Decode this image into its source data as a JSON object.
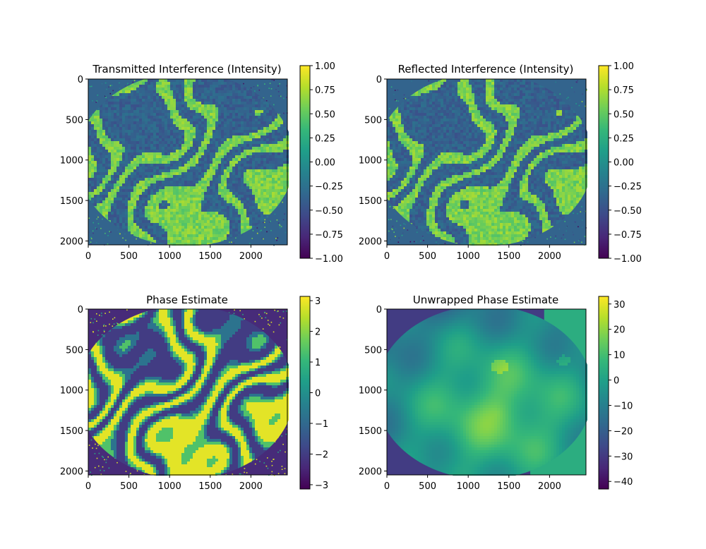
{
  "colors": {
    "background": "#ffffff",
    "viridis": [
      "#440154",
      "#482878",
      "#3e4989",
      "#31688e",
      "#26828e",
      "#1f9e89",
      "#35b779",
      "#6ece58",
      "#b5de2b",
      "#fde725"
    ]
  },
  "chart_data": [
    {
      "type": "heatmap",
      "title": "Transmitted Interference (Intensity)",
      "xlabel": "",
      "ylabel": "",
      "xlim": [
        0,
        2448
      ],
      "ylim": [
        2048,
        0
      ],
      "xticks": [
        0,
        500,
        1000,
        1500,
        2000
      ],
      "yticks": [
        0,
        500,
        1000,
        1500,
        2000
      ],
      "colorbar": {
        "range": [
          -1.0,
          1.0
        ],
        "ticks": [
          "1.00",
          "0.75",
          "0.50",
          "0.25",
          "0.00",
          "−0.25",
          "−0.50",
          "−0.75",
          "−1.00"
        ]
      },
      "pattern": "fringes"
    },
    {
      "type": "heatmap",
      "title": "Reflected Interference (Intensity)",
      "xlabel": "",
      "ylabel": "",
      "xlim": [
        0,
        2448
      ],
      "ylim": [
        2048,
        0
      ],
      "xticks": [
        0,
        500,
        1000,
        1500,
        2000
      ],
      "yticks": [
        0,
        500,
        1000,
        1500,
        2000
      ],
      "colorbar": {
        "range": [
          -1.0,
          1.0
        ],
        "ticks": [
          "1.00",
          "0.75",
          "0.50",
          "0.25",
          "0.00",
          "−0.25",
          "−0.50",
          "−0.75",
          "−1.00"
        ]
      },
      "pattern": "fringes"
    },
    {
      "type": "heatmap",
      "title": "Phase Estimate",
      "xlabel": "",
      "ylabel": "",
      "xlim": [
        0,
        2448
      ],
      "ylim": [
        2048,
        0
      ],
      "xticks": [
        0,
        500,
        1000,
        1500,
        2000
      ],
      "yticks": [
        0,
        500,
        1000,
        1500,
        2000
      ],
      "colorbar": {
        "range": [
          -3.14,
          3.14
        ],
        "ticks": [
          "3",
          "2",
          "1",
          "0",
          "−1",
          "−2",
          "−3"
        ]
      },
      "pattern": "phase"
    },
    {
      "type": "heatmap",
      "title": "Unwrapped Phase Estimate",
      "xlabel": "",
      "ylabel": "",
      "xlim": [
        0,
        2448
      ],
      "ylim": [
        2048,
        0
      ],
      "xticks": [
        0,
        500,
        1000,
        1500,
        2000
      ],
      "yticks": [
        0,
        500,
        1000,
        1500,
        2000
      ],
      "colorbar": {
        "range": [
          -43,
          33
        ],
        "ticks": [
          "30",
          "20",
          "10",
          "0",
          "−10",
          "−20",
          "−30",
          "−40"
        ]
      },
      "pattern": "unwrapped"
    }
  ]
}
